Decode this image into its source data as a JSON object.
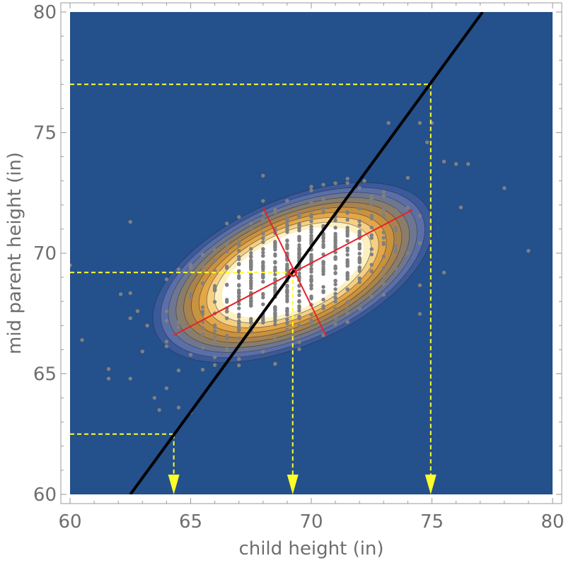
{
  "chart_data": {
    "type": "contour",
    "xlabel": "child height (in)",
    "ylabel": "mid parent height (in)",
    "xlim": [
      60,
      80
    ],
    "ylim": [
      60,
      80
    ],
    "x_ticks": [
      "60",
      "65",
      "70",
      "75",
      "80"
    ],
    "y_ticks": [
      "60",
      "65",
      "70",
      "75",
      "80"
    ],
    "x_tick_values": [
      60,
      65,
      70,
      75,
      80
    ],
    "y_tick_values": [
      60,
      65,
      70,
      75,
      80
    ],
    "mean": [
      69.23,
      69.2
    ],
    "contour_semi_axes": [
      6.2,
      2.15
    ],
    "contour_angle_deg": 24,
    "contour_levels": 8,
    "contour_colors": [
      "#3b5a9a",
      "#5a6fa8",
      "#6f7790",
      "#8a7e6a",
      "#a9834e",
      "#c8923f",
      "#e3a748",
      "#f5cf82",
      "#fdf0c0",
      "#ffffff"
    ],
    "background_color": "#24508b",
    "scatter_color": "#808080",
    "regression_line": {
      "x": [
        62.5,
        77.1
      ],
      "y": [
        60,
        80
      ],
      "color": "#000000"
    },
    "principal_axes": {
      "major": {
        "x": [
          64.3,
          74.2
        ],
        "y": [
          66.6,
          71.8
        ]
      },
      "minor": {
        "x": [
          68.0,
          70.6
        ],
        "y": [
          71.9,
          66.6
        ]
      },
      "color": "#e8202a"
    },
    "projection_guides": [
      {
        "from_y": 62.5,
        "to_x": 64.3
      },
      {
        "from_y": 69.2,
        "to_x": 69.23
      },
      {
        "from_y": 77.0,
        "to_x": 74.95
      }
    ],
    "guide_color": "#ffff2a",
    "scatter_outliers": {
      "x": [
        60.0,
        60.5,
        61.6,
        61.6,
        62.1,
        62.5,
        62.8,
        63.5,
        63.7,
        64.0,
        64.5,
        65.0,
        72.2,
        73.2,
        74.5,
        74.8,
        75.0,
        75.5,
        76.0,
        76.5,
        78.0,
        79.0,
        62.5,
        63.2,
        75.5,
        76.2
      ],
      "y": [
        69.5,
        66.4,
        65.2,
        64.8,
        68.3,
        71.3,
        67.6,
        64.0,
        63.5,
        64.4,
        63.6,
        63.4,
        73.0,
        75.4,
        75.4,
        74.6,
        75.4,
        73.8,
        73.7,
        73.7,
        72.7,
        70.1,
        64.8,
        67.0,
        69.2,
        71.9
      ]
    }
  }
}
